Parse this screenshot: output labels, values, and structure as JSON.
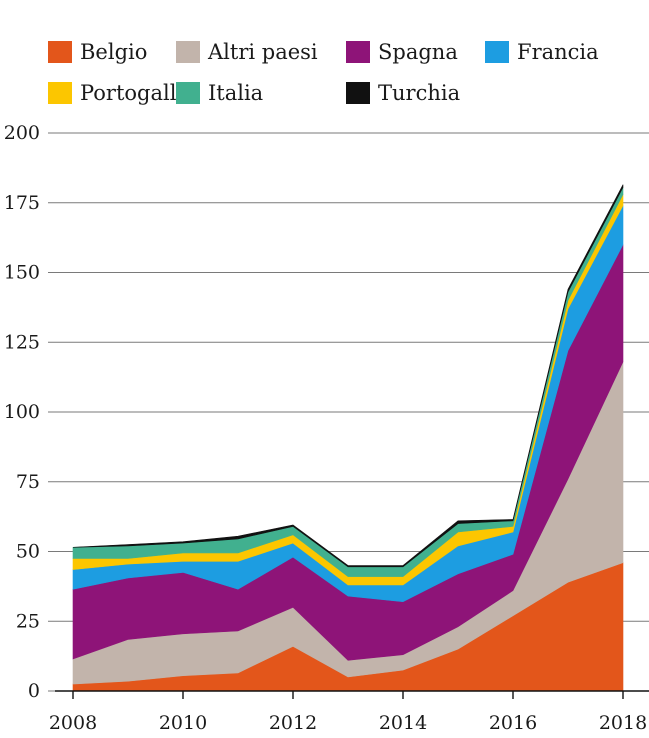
{
  "chart_data": {
    "type": "area",
    "stacked": true,
    "x": [
      2008,
      2009,
      2010,
      2011,
      2012,
      2013,
      2014,
      2015,
      2016,
      2017,
      2018
    ],
    "x_ticks": [
      "2008",
      "2010",
      "2012",
      "2014",
      "2016",
      "2018"
    ],
    "y_ticks": [
      "0",
      "25",
      "50",
      "75",
      "100",
      "125",
      "150",
      "175",
      "200"
    ],
    "ylim": [
      0,
      200
    ],
    "grid": "horizontal",
    "legend_position": "top",
    "series": [
      {
        "name": "Belgio",
        "color": "#e3561b",
        "values": [
          2.5,
          3.5,
          5.5,
          6.5,
          16,
          5,
          7.5,
          15,
          27,
          39,
          46
        ]
      },
      {
        "name": "Altri paesi",
        "color": "#c2b4ab",
        "values": [
          9,
          15,
          15,
          15,
          14,
          6,
          5.5,
          8,
          9,
          37,
          72
        ]
      },
      {
        "name": "Spagna",
        "color": "#8e1478",
        "values": [
          25,
          22,
          22,
          15,
          18,
          23,
          19,
          19,
          13,
          46,
          42
        ]
      },
      {
        "name": "Francia",
        "color": "#1d9de1",
        "values": [
          7,
          5,
          4,
          10,
          5,
          4,
          6,
          10,
          8,
          15,
          14
        ]
      },
      {
        "name": "Portogallo",
        "color": "#fcc600",
        "values": [
          4,
          2,
          3,
          3,
          3,
          3,
          3,
          5,
          2,
          3,
          4
        ]
      },
      {
        "name": "Italia",
        "color": "#41b08f",
        "values": [
          4,
          4.5,
          3.5,
          5,
          3,
          3.5,
          3.5,
          3,
          2,
          3,
          2.5
        ]
      },
      {
        "name": "Turchia",
        "color": "#111111",
        "values": [
          0,
          0.5,
          0.5,
          1,
          0.5,
          0.5,
          0.5,
          1,
          0.5,
          1,
          1
        ]
      }
    ]
  }
}
